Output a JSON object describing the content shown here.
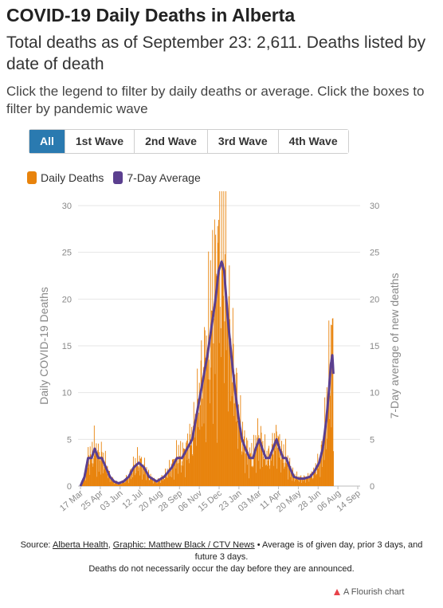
{
  "title": "COVID-19 Daily Deaths in Alberta",
  "subtitle": "Total deaths as of September 23: 2,611. Deaths listed by date of death",
  "instructions": "Click the legend to filter by daily deaths or average. Click the boxes to filter by pandemic wave",
  "filters": [
    "All",
    "1st Wave",
    "2nd Wave",
    "3rd Wave",
    "4th Wave"
  ],
  "active_filter": "All",
  "colors": {
    "daily": "#e8830c",
    "average": "#5b3f8f",
    "active": "#2a7ab0"
  },
  "footer": {
    "source_prefix": "Source: ",
    "source_link1": "Alberta Health",
    "comma": ", ",
    "source_link2": "Graphic: Matthew Black / CTV News",
    "note1": " • Average is of given day, prior 3 days, and future 3 days.",
    "note2": "Deaths do not necessarily occur the day before they are announced."
  },
  "branding": "A Flourish chart",
  "chart_data": {
    "type": "bar",
    "title": "",
    "ylabel": "Daily COVID-19 Deaths",
    "y2label": "7-Day average of new deaths",
    "ylim": [
      0,
      30
    ],
    "y2lim": [
      0,
      30
    ],
    "yticks": [
      0,
      5,
      10,
      15,
      20,
      25,
      30
    ],
    "xticks": [
      "17 Mar",
      "25 Apr",
      "03 Jun",
      "12 Jul",
      "20 Aug",
      "28 Sep",
      "06 Nov",
      "15 Dec",
      "23 Jan",
      "03 Mar",
      "11 Apr",
      "20 May",
      "28 Jun",
      "06 Aug",
      "14 Sep"
    ],
    "xtick_days": [
      0,
      39,
      78,
      117,
      156,
      195,
      234,
      273,
      312,
      351,
      390,
      429,
      468,
      507,
      546
    ],
    "grid": true,
    "legend": "top-left",
    "series": [
      {
        "name": "Daily Deaths",
        "type": "bar",
        "knots": [
          [
            0,
            0
          ],
          [
            8,
            1
          ],
          [
            15,
            3
          ],
          [
            22,
            3
          ],
          [
            28,
            4
          ],
          [
            35,
            3
          ],
          [
            42,
            3
          ],
          [
            50,
            2
          ],
          [
            58,
            1
          ],
          [
            66,
            0.5
          ],
          [
            75,
            0.3
          ],
          [
            85,
            0.5
          ],
          [
            95,
            1
          ],
          [
            105,
            2
          ],
          [
            115,
            2.5
          ],
          [
            125,
            2
          ],
          [
            135,
            1
          ],
          [
            150,
            0.5
          ],
          [
            165,
            1
          ],
          [
            180,
            2
          ],
          [
            190,
            3
          ],
          [
            200,
            3
          ],
          [
            210,
            4
          ],
          [
            220,
            5
          ],
          [
            230,
            8
          ],
          [
            240,
            11
          ],
          [
            250,
            14
          ],
          [
            258,
            17
          ],
          [
            266,
            20
          ],
          [
            272,
            23
          ],
          [
            278,
            24
          ],
          [
            283,
            23
          ],
          [
            290,
            18
          ],
          [
            297,
            14
          ],
          [
            305,
            10
          ],
          [
            312,
            7
          ],
          [
            318,
            5
          ],
          [
            325,
            4
          ],
          [
            333,
            3
          ],
          [
            340,
            3
          ],
          [
            345,
            4
          ],
          [
            352,
            5
          ],
          [
            358,
            4
          ],
          [
            365,
            3
          ],
          [
            372,
            3
          ],
          [
            379,
            4
          ],
          [
            386,
            5
          ],
          [
            392,
            4
          ],
          [
            399,
            3
          ],
          [
            405,
            3
          ],
          [
            412,
            2
          ],
          [
            420,
            1
          ],
          [
            430,
            0.8
          ],
          [
            440,
            0.8
          ],
          [
            452,
            1
          ],
          [
            460,
            1.5
          ],
          [
            470,
            2.5
          ],
          [
            477,
            4
          ],
          [
            484,
            7
          ],
          [
            489,
            10
          ],
          [
            493,
            13
          ],
          [
            496,
            14
          ],
          [
            498,
            12
          ]
        ]
      },
      {
        "name": "7-Day Average",
        "type": "line",
        "knots": [
          [
            0,
            0
          ],
          [
            8,
            1
          ],
          [
            15,
            3
          ],
          [
            22,
            3
          ],
          [
            28,
            4
          ],
          [
            35,
            3
          ],
          [
            42,
            3
          ],
          [
            50,
            2
          ],
          [
            58,
            1
          ],
          [
            66,
            0.5
          ],
          [
            75,
            0.3
          ],
          [
            85,
            0.5
          ],
          [
            95,
            1
          ],
          [
            105,
            2
          ],
          [
            115,
            2.5
          ],
          [
            125,
            2
          ],
          [
            135,
            1
          ],
          [
            150,
            0.5
          ],
          [
            165,
            1
          ],
          [
            180,
            2
          ],
          [
            190,
            3
          ],
          [
            200,
            3
          ],
          [
            210,
            4
          ],
          [
            220,
            5
          ],
          [
            230,
            8
          ],
          [
            240,
            11
          ],
          [
            250,
            14
          ],
          [
            258,
            17
          ],
          [
            266,
            20
          ],
          [
            272,
            23
          ],
          [
            278,
            24
          ],
          [
            283,
            23
          ],
          [
            290,
            18
          ],
          [
            297,
            14
          ],
          [
            305,
            10
          ],
          [
            312,
            7
          ],
          [
            318,
            5
          ],
          [
            325,
            4
          ],
          [
            333,
            3
          ],
          [
            340,
            3
          ],
          [
            345,
            4
          ],
          [
            352,
            5
          ],
          [
            358,
            4
          ],
          [
            365,
            3
          ],
          [
            372,
            3
          ],
          [
            379,
            4
          ],
          [
            386,
            5
          ],
          [
            392,
            4
          ],
          [
            399,
            3
          ],
          [
            405,
            3
          ],
          [
            412,
            2
          ],
          [
            420,
            1
          ],
          [
            430,
            0.8
          ],
          [
            440,
            0.8
          ],
          [
            452,
            1
          ],
          [
            460,
            1.5
          ],
          [
            470,
            2.5
          ],
          [
            477,
            4
          ],
          [
            484,
            7
          ],
          [
            489,
            10
          ],
          [
            493,
            13
          ],
          [
            496,
            14
          ],
          [
            498,
            12
          ]
        ]
      }
    ]
  }
}
